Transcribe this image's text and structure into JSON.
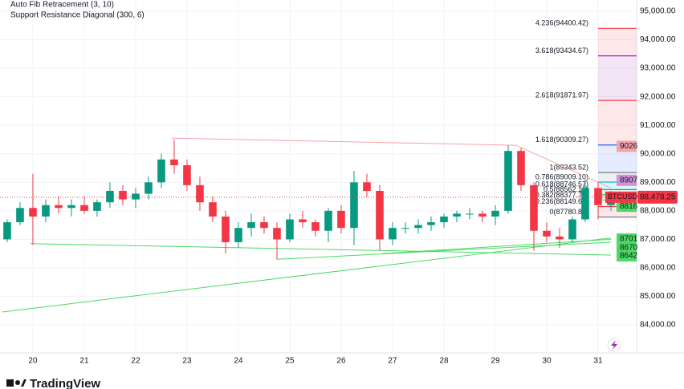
{
  "chart_data": {
    "type": "candlestick",
    "indicators": [
      "Auto Fib Retracement (3, 10)",
      "Support Resistance Diagonal (300, 6)"
    ],
    "brand": "TradingView",
    "xlim": [
      19.36,
      31.75
    ],
    "ylim": [
      83017,
      95394
    ],
    "xticks": [
      20,
      21,
      22,
      23,
      24,
      25,
      26,
      27,
      28,
      29,
      30,
      31
    ],
    "yticks": [
      {
        "value": 84000,
        "label": "84,000.00"
      },
      {
        "value": 85000,
        "label": "85,000.00"
      },
      {
        "value": 86000,
        "label": "86,000.00"
      },
      {
        "value": 87000,
        "label": "87,000.00"
      },
      {
        "value": 88000,
        "label": "88,000.00"
      },
      {
        "value": 89000,
        "label": "89,000.00"
      },
      {
        "value": 90000,
        "label": "90,000.00"
      },
      {
        "value": 91000,
        "label": "91,000.00"
      },
      {
        "value": 92000,
        "label": "92,000.00"
      },
      {
        "value": 93000,
        "label": "93,000.00"
      },
      {
        "value": 94000,
        "label": "94,000.00"
      },
      {
        "value": 95000,
        "label": "95,000.00"
      }
    ],
    "up_color": "#089981",
    "down_color": "#f23645",
    "x": [
      19.5,
      19.75,
      20,
      20.25,
      20.5,
      20.75,
      21,
      21.25,
      21.5,
      21.75,
      22,
      22.25,
      22.5,
      22.75,
      23,
      23.25,
      23.5,
      23.75,
      24,
      24.25,
      24.5,
      24.75,
      25,
      25.25,
      25.5,
      25.75,
      26,
      26.25,
      26.5,
      26.75,
      27,
      27.25,
      27.5,
      27.75,
      28,
      28.25,
      28.5,
      28.75,
      29,
      29.25,
      29.5,
      29.75,
      30,
      30.25,
      30.5,
      30.75,
      31,
      31.25
    ],
    "open": [
      87000,
      87600,
      88100,
      87800,
      88200,
      88100,
      88200,
      88000,
      88300,
      88700,
      88400,
      88600,
      89000,
      89800,
      89600,
      88900,
      88300,
      87800,
      86900,
      87400,
      87600,
      87400,
      87000,
      87700,
      87600,
      87300,
      88000,
      87400,
      89000,
      88700,
      87000,
      87400,
      87400,
      87500,
      87600,
      87800,
      87900,
      87900,
      87800,
      88000,
      90100,
      88900,
      87300,
      87100,
      87000,
      87700,
      88800,
      88200
    ],
    "high": [
      87700,
      88300,
      89300,
      88400,
      88500,
      88400,
      88500,
      88400,
      89000,
      88900,
      88800,
      89200,
      90000,
      90500,
      89800,
      89200,
      88500,
      88000,
      87600,
      87900,
      87800,
      87600,
      87900,
      88000,
      87700,
      88100,
      88200,
      89400,
      89300,
      88900,
      87600,
      87600,
      87700,
      87800,
      87900,
      88000,
      88100,
      88000,
      88200,
      90300,
      90200,
      89000,
      87600,
      87400,
      87800,
      89100,
      89000,
      88700
    ],
    "low": [
      86900,
      87500,
      86800,
      87600,
      87900,
      87800,
      87900,
      87800,
      88100,
      88200,
      88100,
      88400,
      88800,
      89300,
      88700,
      88000,
      87600,
      86500,
      86700,
      87100,
      87200,
      86300,
      86900,
      87400,
      87100,
      86900,
      87200,
      86800,
      88500,
      86600,
      86800,
      87200,
      87200,
      87300,
      87400,
      87600,
      87700,
      87600,
      87500,
      87900,
      88700,
      86600,
      86900,
      86700,
      86900,
      87600,
      87700,
      88000
    ],
    "close": [
      87600,
      88100,
      87800,
      88200,
      88100,
      88200,
      88000,
      88300,
      88700,
      88400,
      88600,
      89000,
      89800,
      89600,
      88900,
      88300,
      87800,
      86900,
      87400,
      87600,
      87400,
      87000,
      87700,
      87600,
      87300,
      88000,
      87400,
      89000,
      88700,
      87000,
      87400,
      87400,
      87500,
      87600,
      87800,
      87900,
      87900,
      87800,
      88000,
      90100,
      88900,
      87300,
      87100,
      87000,
      87700,
      88800,
      88200,
      88478.25
    ],
    "fib_levels": [
      {
        "label": "4.236(94400.42)",
        "value": 94400.42,
        "color": "#f23645"
      },
      {
        "label": "3.618(93434.67)",
        "value": 93434.67,
        "color": "#9c27b0"
      },
      {
        "label": "2.618(91871.97)",
        "value": 91871.97,
        "color": "#f23645"
      },
      {
        "label": "1.618(90309.27)",
        "value": 90309.27,
        "color": "#2962ff"
      },
      {
        "label": "1(89343.52)",
        "value": 89343.52,
        "color": "#787b86"
      },
      {
        "label": "0.786(89009.10)",
        "value": 89009.1,
        "color": "#00bcd4"
      },
      {
        "label": "0.618(88746.57)",
        "value": 88746.57,
        "color": "#089981"
      },
      {
        "label": "0.5(88562.12)",
        "value": 88562.12,
        "color": "#4caf50"
      },
      {
        "label": "0.382(88377.77)",
        "value": 88377.77,
        "color": "#81c784"
      },
      {
        "label": "0.236(88149.62)",
        "value": 88149.62,
        "color": "#f23645"
      },
      {
        "label": "0(87780.82)",
        "value": 87780.82,
        "color": "#787b86"
      }
    ],
    "fib_start": 31.0,
    "trendlines": [
      {
        "x1": 22.7,
        "y1": 90550,
        "x2": 29.4,
        "y2": 90300,
        "color": "#f7a1a8"
      },
      {
        "x1": 29.4,
        "y1": 90300,
        "x2": 31.25,
        "y2": 88800,
        "color": "#f7a1a8"
      },
      {
        "x1": 19.95,
        "y1": 86850,
        "x2": 31.25,
        "y2": 86450,
        "color": "#4cd964"
      },
      {
        "x1": 19.4,
        "y1": 84450,
        "x2": 31.25,
        "y2": 87050,
        "color": "#4cd964"
      },
      {
        "x1": 24.75,
        "y1": 86300,
        "x2": 31.25,
        "y2": 86900,
        "color": "#4cd964"
      },
      {
        "x1": 26.8,
        "y1": 86500,
        "x2": 31.25,
        "y2": 87000,
        "color": "#4cd964"
      }
    ],
    "price_tags": [
      {
        "label": "9026",
        "value": 90260,
        "color": "#f7a1a8"
      },
      {
        "label": "8907",
        "value": 89070,
        "color": "#ce93d8"
      },
      {
        "label": "8816",
        "value": 88160,
        "color": "#4cd964"
      },
      {
        "label": "8701",
        "value": 87010,
        "color": "#4cd964"
      },
      {
        "label": "8670",
        "value": 86700,
        "color": "#4cd964"
      },
      {
        "label": "8642",
        "value": 86420,
        "color": "#4cd964"
      }
    ],
    "symbol": "BTCUSD",
    "last_price": 88478.25,
    "last_price_label": "88,478.25"
  }
}
